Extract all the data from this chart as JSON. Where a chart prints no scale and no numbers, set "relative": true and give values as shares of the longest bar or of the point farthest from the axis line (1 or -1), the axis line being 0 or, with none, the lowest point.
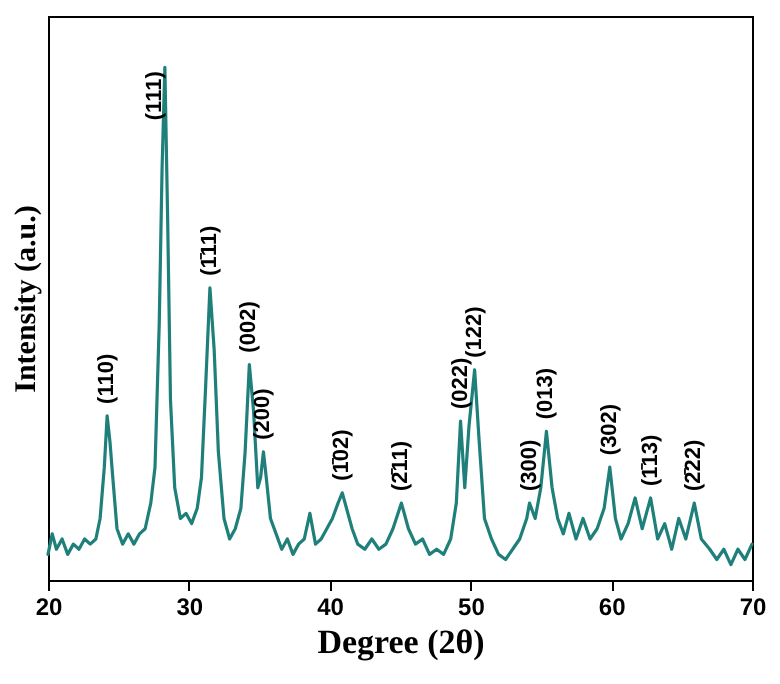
{
  "chart_data": {
    "type": "line",
    "relative": true,
    "xlabel": "Degree (2θ)",
    "ylabel": "Intensity (a.u.)",
    "xlim": [
      20,
      70
    ],
    "xticks": [
      20,
      30,
      40,
      50,
      60,
      70
    ],
    "grid": false,
    "marker": "none",
    "line_style": "solid",
    "x": [
      20,
      20.3,
      20.6,
      21,
      21.4,
      21.8,
      22.2,
      22.6,
      23,
      23.4,
      23.7,
      24.0,
      24.2,
      24.4,
      24.6,
      24.9,
      25.3,
      25.7,
      26.1,
      26.5,
      26.9,
      27.3,
      27.6,
      27.9,
      28.1,
      28.3,
      28.5,
      28.7,
      29.0,
      29.4,
      29.8,
      30.2,
      30.6,
      30.9,
      31.2,
      31.5,
      31.8,
      32.1,
      32.5,
      32.9,
      33.3,
      33.7,
      34.0,
      34.3,
      34.6,
      34.9,
      35.1,
      35.3,
      35.5,
      35.8,
      36.2,
      36.6,
      37.0,
      37.4,
      37.8,
      38.2,
      38.6,
      39.0,
      39.4,
      39.8,
      40.2,
      40.6,
      40.9,
      41.2,
      41.6,
      42.0,
      42.5,
      43.0,
      43.5,
      44.0,
      44.5,
      45.1,
      45.6,
      46.1,
      46.6,
      47.1,
      47.6,
      48.1,
      48.6,
      49.0,
      49.3,
      49.6,
      49.9,
      50.3,
      50.6,
      51.0,
      51.5,
      52.0,
      52.5,
      53.0,
      53.5,
      54.0,
      54.2,
      54.6,
      55.0,
      55.4,
      55.8,
      56.2,
      56.6,
      57.0,
      57.5,
      58.0,
      58.5,
      59.0,
      59.5,
      59.9,
      60.3,
      60.7,
      61.2,
      61.7,
      62.2,
      62.8,
      63.3,
      63.8,
      64.3,
      64.8,
      65.3,
      65.9,
      66.4,
      67.0,
      67.5,
      68.0,
      68.5,
      69.0,
      69.5,
      70.0
    ],
    "series": [
      {
        "color": "#1f7f7a",
        "values": [
          0.05,
          0.09,
          0.06,
          0.08,
          0.05,
          0.07,
          0.06,
          0.08,
          0.07,
          0.08,
          0.12,
          0.22,
          0.32,
          0.27,
          0.2,
          0.1,
          0.07,
          0.09,
          0.07,
          0.09,
          0.1,
          0.15,
          0.22,
          0.5,
          0.8,
          1.0,
          0.7,
          0.35,
          0.18,
          0.12,
          0.13,
          0.11,
          0.14,
          0.2,
          0.38,
          0.57,
          0.45,
          0.25,
          0.12,
          0.08,
          0.1,
          0.14,
          0.25,
          0.42,
          0.33,
          0.18,
          0.2,
          0.25,
          0.2,
          0.12,
          0.09,
          0.06,
          0.08,
          0.05,
          0.07,
          0.08,
          0.13,
          0.07,
          0.08,
          0.1,
          0.12,
          0.15,
          0.17,
          0.14,
          0.1,
          0.07,
          0.06,
          0.08,
          0.06,
          0.07,
          0.1,
          0.15,
          0.1,
          0.07,
          0.08,
          0.05,
          0.06,
          0.05,
          0.08,
          0.15,
          0.31,
          0.18,
          0.3,
          0.41,
          0.28,
          0.12,
          0.08,
          0.05,
          0.04,
          0.06,
          0.08,
          0.12,
          0.15,
          0.12,
          0.18,
          0.29,
          0.18,
          0.12,
          0.09,
          0.13,
          0.08,
          0.12,
          0.08,
          0.1,
          0.14,
          0.22,
          0.12,
          0.08,
          0.11,
          0.16,
          0.1,
          0.16,
          0.08,
          0.11,
          0.06,
          0.12,
          0.08,
          0.15,
          0.08,
          0.06,
          0.04,
          0.06,
          0.03,
          0.06,
          0.04,
          0.07
        ]
      }
    ],
    "annotations": [
      {
        "text": "(110)",
        "x": 24.2,
        "y": 0.32
      },
      {
        "text": "(111)",
        "x": 28.3,
        "y": 1.0
      },
      {
        "text": "(1̄11)",
        "x": 31.5,
        "y": 0.57
      },
      {
        "text": "(002)",
        "x": 34.3,
        "y": 0.42
      },
      {
        "text": "(200)",
        "x": 35.3,
        "y": 0.25
      },
      {
        "text": "(1̄02)",
        "x": 40.9,
        "y": 0.17
      },
      {
        "text": "(2̄11)",
        "x": 45.1,
        "y": 0.15
      },
      {
        "text": "(022)",
        "x": 49.3,
        "y": 0.31
      },
      {
        "text": "(122)",
        "x": 50.3,
        "y": 0.41
      },
      {
        "text": "(300)",
        "x": 54.2,
        "y": 0.15
      },
      {
        "text": "(013)",
        "x": 55.4,
        "y": 0.29
      },
      {
        "text": "(302)",
        "x": 59.9,
        "y": 0.22
      },
      {
        "text": "(1̄13)",
        "x": 62.8,
        "y": 0.16
      },
      {
        "text": "(2̄22)",
        "x": 65.9,
        "y": 0.15
      }
    ]
  }
}
